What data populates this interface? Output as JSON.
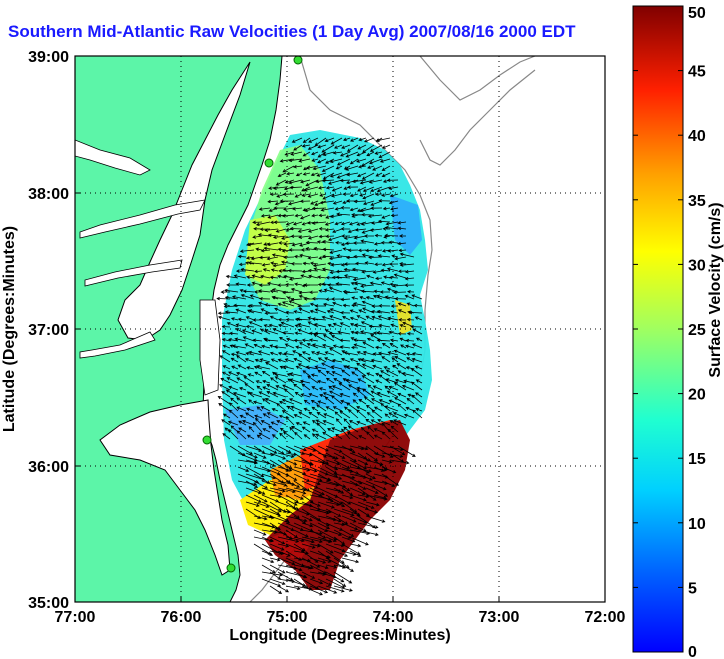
{
  "title": "Southern Mid-Atlantic Raw Velocities (1 Day Avg) 2007/08/16 2000 EDT",
  "map": {
    "xlabel": "Longitude (Degrees:Minutes)",
    "ylabel": "Latitude (Degrees:Minutes)",
    "x_ticks": [
      "77:00",
      "76:00",
      "75:00",
      "74:00",
      "73:00",
      "72:00"
    ],
    "y_ticks": [
      "39:00",
      "38:00",
      "37:00",
      "36:00",
      "35:00"
    ],
    "land_color": "#5cf5a8",
    "grid": "dotted"
  },
  "colorbar": {
    "label": "Surface Velocity (cm/s)",
    "ticks": [
      "0",
      "5",
      "10",
      "15",
      "20",
      "25",
      "30",
      "35",
      "40",
      "45",
      "50"
    ],
    "range": [
      0,
      50
    ],
    "colormap": "jet"
  },
  "stations": [
    "station-1",
    "station-2",
    "station-3",
    "station-4"
  ]
}
